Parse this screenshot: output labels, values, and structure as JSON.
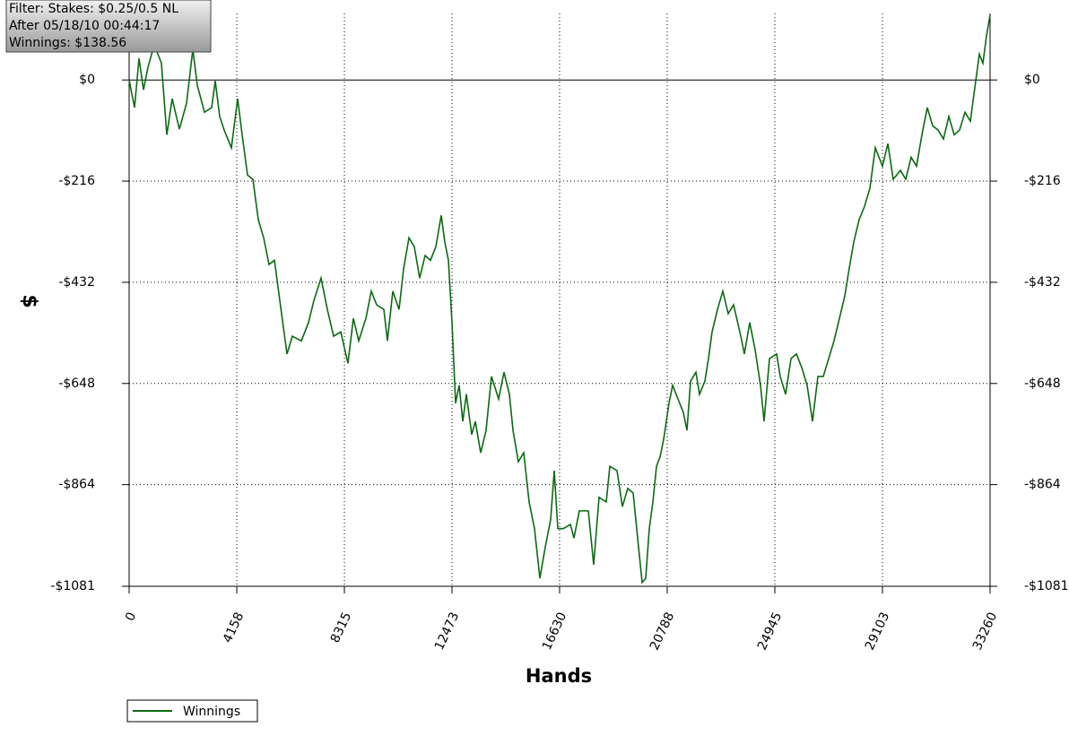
{
  "chart_data": {
    "type": "line",
    "annotations": [
      "Filter: Stakes: $0.25/0.5 NL",
      "After 05/18/10 00:44:17",
      "Winnings: $138.56"
    ],
    "x_label": "Hands",
    "y_label": "$",
    "xlim": [
      0,
      33260
    ],
    "xticks": [
      0,
      4158,
      8315,
      12473,
      16630,
      20788,
      24945,
      29103,
      33260
    ],
    "ylim": [
      -1081,
      142
    ],
    "yticks": [
      {
        "value": 0,
        "label": "$0"
      },
      {
        "value": -216,
        "label": "-$216"
      },
      {
        "value": -432,
        "label": "-$432"
      },
      {
        "value": -648,
        "label": "-$648"
      },
      {
        "value": -864,
        "label": "-$864"
      },
      {
        "value": -1081,
        "label": "-$1081"
      }
    ],
    "grid": true,
    "legend": "bottom-left",
    "series": [
      {
        "name": "Winnings",
        "color": "#0b6a12",
        "x": [
          0,
          208,
          381,
          554,
          728,
          970,
          1247,
          1455,
          1663,
          1940,
          2217,
          2460,
          2633,
          2910,
          3187,
          3326,
          3499,
          3672,
          3950,
          4192,
          4365,
          4573,
          4781,
          4989,
          5197,
          5405,
          5613,
          5821,
          6098,
          6306,
          6652,
          6929,
          7137,
          7414,
          7657,
          7899,
          8176,
          8453,
          8662,
          8869,
          9147,
          9354,
          9562,
          9840,
          9978,
          10186,
          10428,
          10601,
          10810,
          11017,
          11225,
          11433,
          11641,
          11849,
          12057,
          12195,
          12334,
          12473,
          12611,
          12750,
          12889,
          13027,
          13235,
          13374,
          13581,
          13789,
          13997,
          14274,
          14482,
          14690,
          14829,
          15036,
          15244,
          15452,
          15660,
          15868,
          16076,
          16284,
          16422,
          16561,
          16769,
          17046,
          17184,
          17392,
          17739,
          17946,
          18154,
          18432,
          18570,
          18847,
          19055,
          19263,
          19471,
          19679,
          19818,
          19956,
          20095,
          20234,
          20372,
          20510,
          20649,
          20857,
          20996,
          21203,
          21411,
          21550,
          21689,
          21896,
          22035,
          22243,
          22381,
          22520,
          22728,
          22936,
          23143,
          23351,
          23629,
          23767,
          23975,
          24183,
          24391,
          24529,
          24737,
          25014,
          25153,
          25361,
          25569,
          25777,
          25985,
          26192,
          26400,
          26608,
          26816,
          27024,
          27232,
          27440,
          27648,
          27786,
          27994,
          28202,
          28410,
          28618,
          28825,
          29103,
          29311,
          29518,
          29796,
          30003,
          30211,
          30419,
          30627,
          30835,
          31043,
          31251,
          31459,
          31667,
          31874,
          32082,
          32290,
          32498,
          32706,
          32844,
          32983,
          33121,
          33260
        ],
        "values": [
          0,
          -59,
          46,
          -21,
          27,
          75,
          36,
          -117,
          -40,
          -105,
          -50,
          65,
          -11,
          -69,
          -59,
          -2,
          -78,
          -107,
          -145,
          -40,
          -117,
          -203,
          -212,
          -298,
          -337,
          -394,
          -385,
          -471,
          -585,
          -547,
          -557,
          -518,
          -471,
          -423,
          -490,
          -547,
          -538,
          -605,
          -509,
          -557,
          -509,
          -451,
          -480,
          -490,
          -557,
          -451,
          -490,
          -404,
          -337,
          -356,
          -423,
          -375,
          -385,
          -356,
          -289,
          -346,
          -385,
          -518,
          -690,
          -652,
          -729,
          -671,
          -757,
          -729,
          -796,
          -748,
          -633,
          -681,
          -624,
          -671,
          -748,
          -815,
          -796,
          -901,
          -958,
          -1064,
          -997,
          -939,
          -834,
          -958,
          -958,
          -949,
          -978,
          -920,
          -920,
          -1035,
          -891,
          -901,
          -825,
          -834,
          -911,
          -872,
          -882,
          -997,
          -1073,
          -1064,
          -958,
          -901,
          -825,
          -805,
          -767,
          -690,
          -652,
          -681,
          -710,
          -748,
          -643,
          -624,
          -671,
          -643,
          -595,
          -538,
          -490,
          -451,
          -499,
          -480,
          -547,
          -585,
          -518,
          -576,
          -652,
          -729,
          -595,
          -585,
          -633,
          -671,
          -595,
          -585,
          -614,
          -652,
          -729,
          -633,
          -633,
          -595,
          -557,
          -509,
          -461,
          -413,
          -346,
          -298,
          -270,
          -231,
          -145,
          -184,
          -136,
          -212,
          -193,
          -212,
          -165,
          -184,
          -117,
          -59,
          -98,
          -107,
          -126,
          -78,
          -117,
          -107,
          -69,
          -88,
          -2,
          55,
          36,
          94,
          138.56
        ]
      }
    ]
  }
}
